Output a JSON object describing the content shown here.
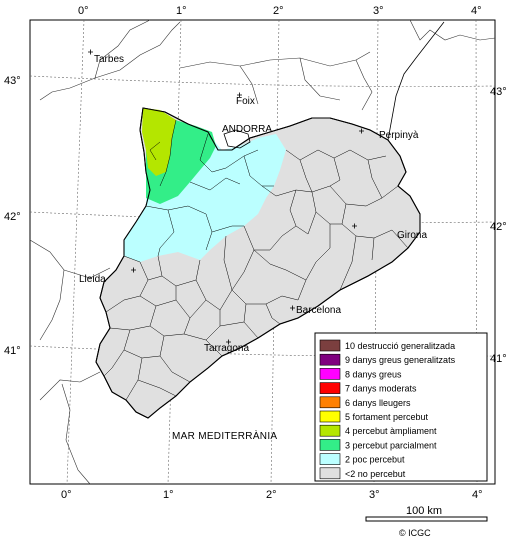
{
  "axes": {
    "top_ticks": [
      "0°",
      "1°",
      "2°",
      "3°",
      "4°"
    ],
    "bottom_ticks": [
      "0°",
      "1°",
      "2°",
      "3°",
      "4°"
    ],
    "left_ticks": [
      "43°",
      "42°",
      "41°"
    ],
    "right_ticks": [
      "43°",
      "42°",
      "41°"
    ]
  },
  "places": {
    "tarbes": "Tarbes",
    "foix": "Foix",
    "andorra": "ANDORRA",
    "perpinya": "Perpinyà",
    "girona": "Girona",
    "lleida": "Lleida",
    "barcelona": "Barcelona",
    "tarragona": "Tarragona",
    "sea": "MAR MEDITERRÀNIA"
  },
  "legend": [
    {
      "label": "10 destrucció generalitzada",
      "color": "#7b3f3f"
    },
    {
      "label": "9 danys greus generalitzats",
      "color": "#7f007f"
    },
    {
      "label": "8 danys greus",
      "color": "#ff00ff"
    },
    {
      "label": "7 danys moderats",
      "color": "#ff0000"
    },
    {
      "label": "6 danys lleugers",
      "color": "#ff8000"
    },
    {
      "label": "5 fortament percebut",
      "color": "#ffff00"
    },
    {
      "label": "4 percebut àmpliament",
      "color": "#b4e600"
    },
    {
      "label": "3 percebut parcialment",
      "color": "#33ee88"
    },
    {
      "label": "2 poc percebut",
      "color": "#bbffff"
    },
    {
      "label": "<2 no percebut",
      "color": "#e0e0e0"
    }
  ],
  "scale_bar": {
    "label": "100 km"
  },
  "credit": "© ICGC"
}
